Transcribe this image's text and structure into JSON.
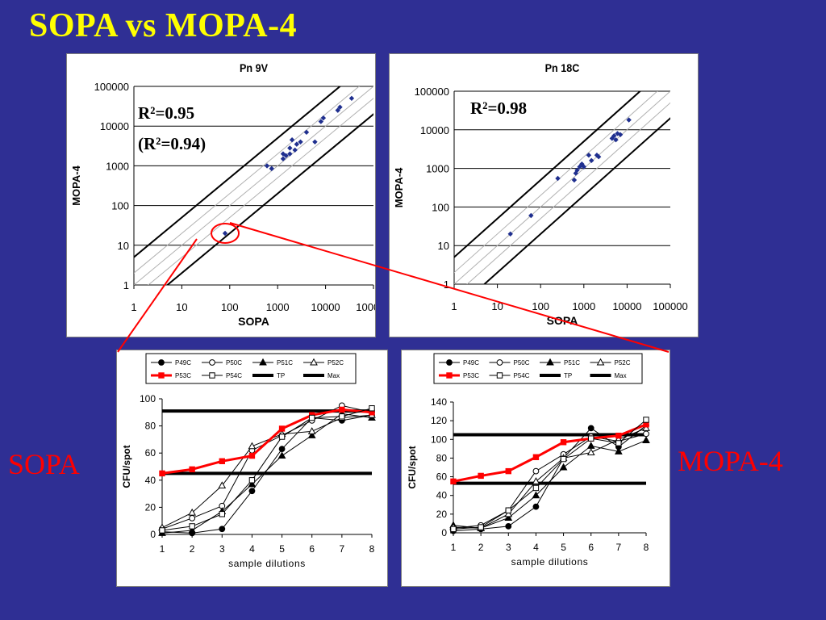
{
  "slide": {
    "title": "SOPA vs MOPA-4",
    "left_label": "SOPA",
    "right_label": "MOPA-4"
  },
  "colors": {
    "background": "#2f2f94",
    "title": "#ffff00",
    "accent": "#ff0000",
    "points": "#1f2f8f"
  },
  "chart_data": [
    {
      "type": "scatter",
      "title": "Pn 9V",
      "xlabel": "SOPA",
      "ylabel": "MOPA-4",
      "scale": "log",
      "xlim": [
        1,
        100000
      ],
      "ylim": [
        1,
        100000
      ],
      "ticks": [
        "1",
        "10",
        "100",
        "1000",
        "10000",
        "100000"
      ],
      "annotations": [
        "R²=0.95",
        "(R²=0.94)"
      ],
      "highlighted_point": [
        80,
        20
      ],
      "points": [
        [
          80,
          20
        ],
        [
          600,
          1000
        ],
        [
          750,
          850
        ],
        [
          1300,
          1500
        ],
        [
          1300,
          2000
        ],
        [
          1500,
          1800
        ],
        [
          1800,
          2000
        ],
        [
          1800,
          2800
        ],
        [
          2000,
          4500
        ],
        [
          2300,
          2500
        ],
        [
          2500,
          3500
        ],
        [
          3000,
          4000
        ],
        [
          4000,
          7000
        ],
        [
          6000,
          4000
        ],
        [
          8000,
          13000
        ],
        [
          9000,
          16000
        ],
        [
          18000,
          25000
        ],
        [
          20000,
          30000
        ],
        [
          35000,
          50000
        ]
      ]
    },
    {
      "type": "scatter",
      "title": "Pn 18C",
      "xlabel": "SOPA",
      "ylabel": "MOPA-4",
      "scale": "log",
      "xlim": [
        1,
        100000
      ],
      "ylim": [
        1,
        100000
      ],
      "ticks": [
        "1",
        "10",
        "100",
        "1000",
        "10000",
        "100000"
      ],
      "annotations": [
        "R²=0.98"
      ],
      "points": [
        [
          20,
          20
        ],
        [
          60,
          60
        ],
        [
          250,
          550
        ],
        [
          600,
          500
        ],
        [
          650,
          750
        ],
        [
          700,
          900
        ],
        [
          800,
          1100
        ],
        [
          900,
          1300
        ],
        [
          1000,
          1100
        ],
        [
          1300,
          2200
        ],
        [
          1500,
          1600
        ],
        [
          2000,
          2200
        ],
        [
          2200,
          2000
        ],
        [
          4500,
          6000
        ],
        [
          5000,
          7000
        ],
        [
          5500,
          5500
        ],
        [
          6000,
          8000
        ],
        [
          7000,
          7500
        ],
        [
          11000,
          18000
        ]
      ]
    },
    {
      "type": "line",
      "xlabel": "sample dilutions",
      "ylabel": "CFU/spot",
      "x": [
        1,
        2,
        3,
        4,
        5,
        6,
        7,
        8
      ],
      "ylim": [
        0,
        100
      ],
      "yticks": [
        0,
        20,
        40,
        60,
        80,
        100
      ],
      "reference_lines": [
        {
          "name": "TP",
          "value": 45
        },
        {
          "name": "Max",
          "value": 91
        }
      ],
      "series": [
        {
          "name": "P49C",
          "marker": "filled-circle",
          "values": [
            2,
            1,
            4,
            32,
            63,
            86,
            84,
            88
          ]
        },
        {
          "name": "P50C",
          "marker": "open-circle",
          "values": [
            4,
            12,
            21,
            62,
            73,
            84,
            95,
            90
          ]
        },
        {
          "name": "P51C",
          "marker": "filled-triangle",
          "values": [
            1,
            3,
            17,
            37,
            58,
            73,
            89,
            86
          ]
        },
        {
          "name": "P52C",
          "marker": "open-triangle",
          "values": [
            5,
            16,
            36,
            65,
            74,
            76,
            86,
            88
          ]
        },
        {
          "name": "P53C",
          "marker": "filled-square",
          "values": [
            45,
            48,
            54,
            58,
            78,
            88,
            92,
            90
          ]
        },
        {
          "name": "P54C",
          "marker": "open-square",
          "values": [
            3,
            6,
            15,
            40,
            72,
            86,
            87,
            93
          ]
        }
      ]
    },
    {
      "type": "line",
      "xlabel": "sample dilutions",
      "ylabel": "CFU/spot",
      "x": [
        1,
        2,
        3,
        4,
        5,
        6,
        7,
        8
      ],
      "ylim": [
        0,
        140
      ],
      "yticks": [
        0,
        20,
        40,
        60,
        80,
        100,
        120,
        140
      ],
      "reference_lines": [
        {
          "name": "TP",
          "value": 53
        },
        {
          "name": "Max",
          "value": 105
        }
      ],
      "series": [
        {
          "name": "P49C",
          "marker": "filled-circle",
          "values": [
            2,
            4,
            7,
            28,
            80,
            112,
            92,
            115
          ]
        },
        {
          "name": "P50C",
          "marker": "open-circle",
          "values": [
            5,
            8,
            24,
            66,
            84,
            103,
            98,
            106
          ]
        },
        {
          "name": "P51C",
          "marker": "filled-triangle",
          "values": [
            8,
            5,
            16,
            40,
            70,
            93,
            87,
            99
          ]
        },
        {
          "name": "P52C",
          "marker": "open-triangle",
          "values": [
            6,
            5,
            20,
            55,
            80,
            86,
            100,
            112
          ]
        },
        {
          "name": "P53C",
          "marker": "filled-square",
          "values": [
            55,
            61,
            66,
            81,
            97,
            101,
            104,
            116
          ]
        },
        {
          "name": "P54C",
          "marker": "open-square",
          "values": [
            4,
            6,
            24,
            48,
            79,
            101,
            96,
            121
          ]
        }
      ]
    }
  ]
}
